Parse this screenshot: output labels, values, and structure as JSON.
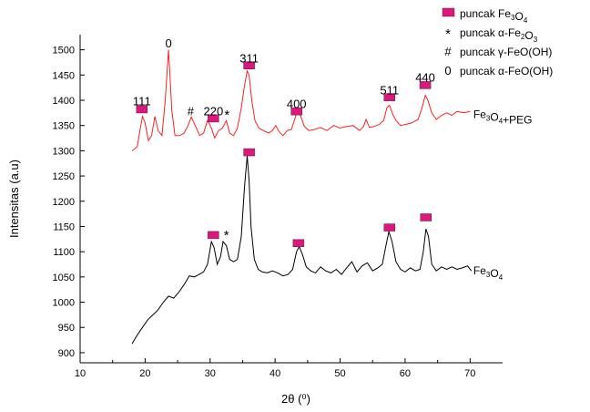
{
  "chart_data": {
    "type": "line",
    "xlabel": "2θ (⁰)",
    "ylabel": "Intensitas (a.u)",
    "xlim": [
      10,
      75
    ],
    "ylim": [
      880,
      1530
    ],
    "xticks": [
      10,
      20,
      30,
      40,
      50,
      60,
      70
    ],
    "yticks": [
      900,
      950,
      1000,
      1050,
      1100,
      1150,
      1200,
      1250,
      1300,
      1350,
      1400,
      1450,
      1500
    ],
    "legend": {
      "position": "top-right",
      "items": [
        {
          "marker": "square",
          "color": "#e0157f",
          "label": "puncak Fe3O4"
        },
        {
          "marker": "*",
          "label": "puncak α-Fe2O3"
        },
        {
          "marker": "#",
          "label": "puncak γ-FeO(OH)"
        },
        {
          "marker": "0",
          "label": "puncak α-FeO(OH)"
        }
      ]
    },
    "series": [
      {
        "name": "Fe3O4+PEG",
        "color": "#ff2020",
        "x": [
          18.0,
          18.8,
          19.2,
          19.6,
          20.0,
          20.5,
          21.0,
          21.5,
          22.0,
          22.6,
          23.1,
          23.6,
          24.1,
          24.6,
          25.3,
          26.0,
          26.6,
          27.1,
          27.7,
          28.4,
          29.0,
          29.6,
          30.2,
          30.7,
          31.3,
          31.9,
          32.5,
          33.0,
          33.6,
          34.2,
          34.8,
          35.3,
          35.7,
          36.0,
          36.4,
          36.9,
          37.5,
          38.2,
          39.0,
          39.6,
          40.1,
          40.6,
          41.2,
          41.9,
          42.5,
          43.0,
          43.4,
          43.9,
          44.5,
          45.2,
          46.0,
          47.0,
          48.0,
          49.0,
          50.0,
          51.0,
          52.0,
          53.0,
          53.6,
          54.0,
          54.5,
          55.2,
          56.0,
          56.7,
          57.2,
          57.6,
          58.1,
          58.6,
          59.3,
          60.0,
          61.0,
          62.0,
          62.6,
          63.1,
          63.5,
          64.1,
          64.8,
          65.6,
          66.4,
          67.2,
          68.0,
          69.0,
          70.0
        ],
        "values": [
          1300,
          1308,
          1340,
          1368,
          1355,
          1320,
          1330,
          1368,
          1340,
          1330,
          1400,
          1500,
          1380,
          1330,
          1330,
          1335,
          1350,
          1367,
          1350,
          1330,
          1335,
          1360,
          1345,
          1325,
          1340,
          1345,
          1360,
          1335,
          1330,
          1345,
          1385,
          1430,
          1458,
          1450,
          1400,
          1360,
          1345,
          1340,
          1335,
          1340,
          1350,
          1338,
          1330,
          1340,
          1342,
          1362,
          1378,
          1370,
          1348,
          1340,
          1342,
          1346,
          1340,
          1350,
          1345,
          1348,
          1350,
          1340,
          1348,
          1362,
          1346,
          1348,
          1352,
          1360,
          1385,
          1390,
          1372,
          1360,
          1350,
          1352,
          1355,
          1362,
          1385,
          1410,
          1400,
          1375,
          1362,
          1370,
          1375,
          1370,
          1378,
          1375,
          1378
        ]
      },
      {
        "name": "Fe3O4",
        "color": "#000000",
        "x": [
          18.0,
          18.8,
          19.6,
          20.4,
          21.2,
          22.0,
          22.8,
          23.6,
          24.4,
          25.2,
          26.0,
          26.8,
          27.6,
          28.3,
          29.0,
          29.6,
          30.2,
          30.6,
          31.1,
          31.6,
          32.0,
          32.5,
          33.0,
          33.6,
          34.2,
          34.8,
          35.3,
          35.7,
          36.0,
          36.3,
          36.8,
          37.4,
          38.0,
          38.8,
          39.6,
          40.4,
          41.2,
          42.0,
          42.7,
          43.3,
          43.7,
          44.2,
          44.8,
          45.5,
          46.2,
          47.0,
          47.8,
          48.6,
          49.4,
          50.2,
          51.0,
          51.8,
          52.6,
          53.4,
          54.2,
          55.0,
          55.8,
          56.5,
          57.1,
          57.5,
          58.0,
          58.6,
          59.3,
          60.0,
          60.8,
          61.6,
          62.3,
          62.8,
          63.2,
          63.6,
          64.1,
          64.8,
          65.6,
          66.4,
          67.2,
          68.0,
          68.8,
          69.6,
          70.2
        ],
        "values": [
          918,
          935,
          950,
          965,
          975,
          985,
          1000,
          1012,
          1008,
          1020,
          1035,
          1052,
          1050,
          1055,
          1060,
          1075,
          1120,
          1108,
          1075,
          1090,
          1120,
          1112,
          1085,
          1080,
          1085,
          1130,
          1230,
          1290,
          1240,
          1150,
          1085,
          1065,
          1060,
          1058,
          1062,
          1058,
          1052,
          1055,
          1065,
          1100,
          1110,
          1095,
          1070,
          1062,
          1058,
          1070,
          1062,
          1058,
          1065,
          1055,
          1068,
          1080,
          1060,
          1072,
          1078,
          1062,
          1068,
          1075,
          1115,
          1140,
          1120,
          1080,
          1065,
          1060,
          1068,
          1062,
          1065,
          1100,
          1145,
          1130,
          1075,
          1062,
          1070,
          1065,
          1070,
          1065,
          1068,
          1072,
          1062
        ]
      }
    ],
    "series_labels": [
      {
        "text": "Fe3O4+PEG",
        "x": 70.5,
        "y": 1365
      },
      {
        "text": "Fe3O4",
        "x": 70.5,
        "y": 1055
      }
    ],
    "peak_labels": [
      {
        "text": "111",
        "x": 19.5,
        "y": 1390
      },
      {
        "text": "0",
        "x": 23.6,
        "y": 1505
      },
      {
        "text": "#",
        "x": 27.0,
        "y": 1370
      },
      {
        "text": "220",
        "x": 30.5,
        "y": 1370
      },
      {
        "text": "*",
        "x": 32.6,
        "y": 1362
      },
      {
        "text": "311",
        "x": 36.0,
        "y": 1475
      },
      {
        "text": "400",
        "x": 43.3,
        "y": 1385
      },
      {
        "text": "511",
        "x": 57.6,
        "y": 1412
      },
      {
        "text": "440",
        "x": 63.1,
        "y": 1437
      },
      {
        "text": "*",
        "x": 32.5,
        "y": 1124
      }
    ],
    "peak_markers": [
      {
        "series": "Fe3O4+PEG",
        "x": 19.5,
        "y": 1382
      },
      {
        "series": "Fe3O4+PEG",
        "x": 30.5,
        "y": 1364
      },
      {
        "series": "Fe3O4+PEG",
        "x": 36.0,
        "y": 1469
      },
      {
        "series": "Fe3O4+PEG",
        "x": 43.3,
        "y": 1378
      },
      {
        "series": "Fe3O4+PEG",
        "x": 57.6,
        "y": 1406
      },
      {
        "series": "Fe3O4+PEG",
        "x": 63.1,
        "y": 1430
      },
      {
        "series": "Fe3O4",
        "x": 30.5,
        "y": 1133
      },
      {
        "series": "Fe3O4",
        "x": 36.0,
        "y": 1297
      },
      {
        "series": "Fe3O4",
        "x": 43.6,
        "y": 1117
      },
      {
        "series": "Fe3O4",
        "x": 57.6,
        "y": 1148
      },
      {
        "series": "Fe3O4",
        "x": 63.2,
        "y": 1168
      }
    ],
    "marker_color": "#e0157f"
  }
}
